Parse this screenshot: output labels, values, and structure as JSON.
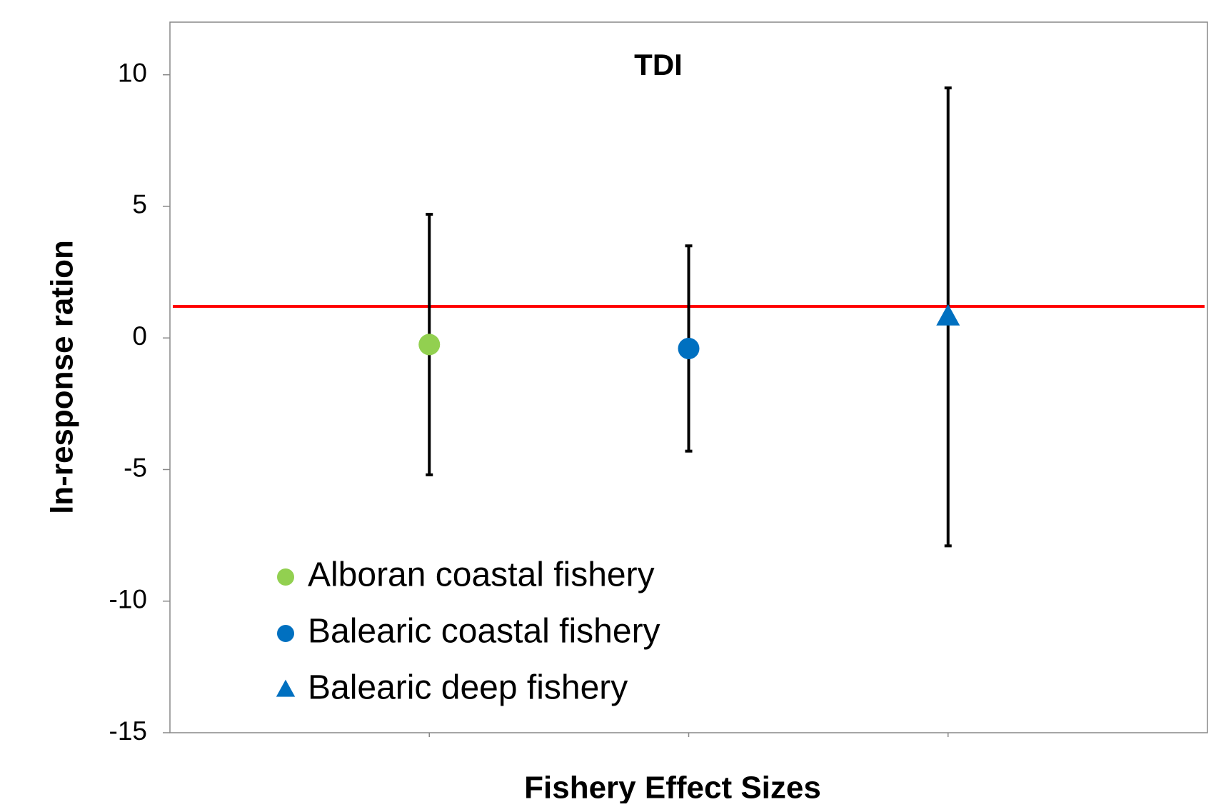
{
  "chart_data": {
    "type": "scatter",
    "title": "TDI",
    "x_label": "Fishery Effect Sizes",
    "y_label": "ln-response ration",
    "xlim": [
      0,
      4
    ],
    "xticks": [
      1,
      2,
      3
    ],
    "ylim": [
      -15,
      12
    ],
    "yticks": [
      -15,
      -10,
      -5,
      0,
      5,
      10
    ],
    "reference_line": {
      "value": 1.2,
      "color": "#ff0000"
    },
    "error_bar_color": "#000000",
    "legend": "bottom-left",
    "series": [
      {
        "name": "Alboran coastal fishery",
        "color": "#92d050",
        "marker": "circle",
        "x": [
          1
        ],
        "values": [
          -0.25
        ],
        "lower": [
          -5.2
        ],
        "upper": [
          4.7
        ]
      },
      {
        "name": "Balearic coastal fishery",
        "color": "#0070c0",
        "marker": "circle",
        "x": [
          2
        ],
        "values": [
          -0.4
        ],
        "lower": [
          -4.3
        ],
        "upper": [
          3.5
        ]
      },
      {
        "name": "Balearic deep fishery",
        "color": "#0070c0",
        "marker": "triangle",
        "x": [
          3
        ],
        "values": [
          0.8
        ],
        "lower": [
          -7.9
        ],
        "upper": [
          9.5
        ]
      }
    ]
  }
}
